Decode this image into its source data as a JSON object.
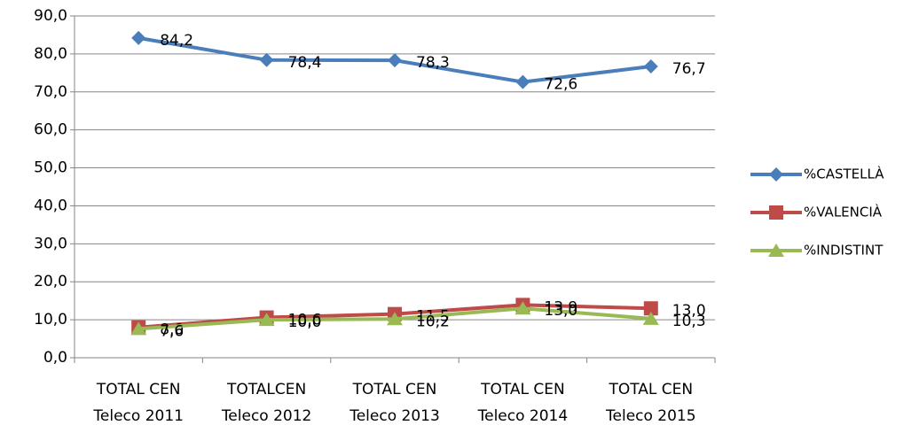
{
  "chart_data": {
    "type": "line",
    "categories": [
      [
        "TOTAL CEN",
        "Teleco 2011"
      ],
      [
        "TOTALCEN",
        "Teleco 2012"
      ],
      [
        "TOTAL CEN",
        "Teleco 2013"
      ],
      [
        "TOTAL CEN",
        "Teleco 2014"
      ],
      [
        "TOTAL CEN",
        "Teleco 2015"
      ]
    ],
    "series": [
      {
        "name": "%CASTELLÀ",
        "color": "#4a7ebb",
        "marker": "diamond",
        "values": [
          84.2,
          78.4,
          78.3,
          72.6,
          76.7
        ],
        "value_labels": [
          "84,2",
          "78,4",
          "78,3",
          "72,6",
          "76,7"
        ]
      },
      {
        "name": "%VALENCIÀ",
        "color": "#be4b48",
        "marker": "square",
        "values": [
          8.0,
          10.6,
          11.5,
          13.9,
          13.0
        ],
        "value_labels": [
          "8,0",
          "10,6",
          "11,5",
          "13,9",
          "13,0"
        ]
      },
      {
        "name": "%INDISTINT",
        "color": "#98b954",
        "marker": "triangle",
        "values": [
          7.6,
          10.0,
          10.2,
          13.0,
          10.3
        ],
        "value_labels": [
          "7,6",
          "10,0",
          "10,2",
          "13,0",
          "10,3"
        ]
      }
    ],
    "ylim": [
      0,
      90
    ],
    "yticks": [
      {
        "value": 0,
        "label": "0,0"
      },
      {
        "value": 10,
        "label": "10,0"
      },
      {
        "value": 20,
        "label": "20,0"
      },
      {
        "value": 30,
        "label": "30,0"
      },
      {
        "value": 40,
        "label": "40,0"
      },
      {
        "value": 50,
        "label": "50,0"
      },
      {
        "value": 60,
        "label": "60,0"
      },
      {
        "value": 70,
        "label": "70,0"
      },
      {
        "value": 80,
        "label": "80,0"
      },
      {
        "value": 90,
        "label": "90,0"
      }
    ],
    "grid": true,
    "legend": "right"
  }
}
